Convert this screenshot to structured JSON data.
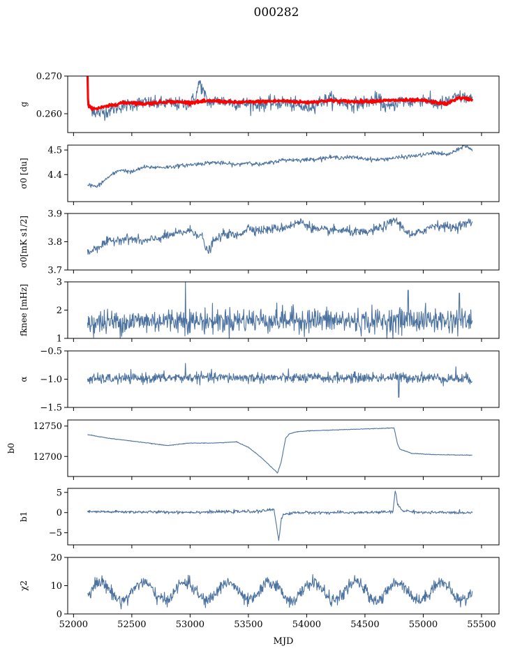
{
  "figure": {
    "title": "000282",
    "xlabel": "MJD"
  },
  "colors": {
    "series": "#4c72a0",
    "fit": "#ff0000",
    "axis": "#000000",
    "background": "#ffffff"
  },
  "chart_data": {
    "type": "line",
    "xlim": [
      51950,
      55650
    ],
    "xticks": [
      52000,
      52500,
      53000,
      53500,
      54000,
      54500,
      55000,
      55500
    ],
    "xtick_labels": [
      "52000",
      "52500",
      "53000",
      "53500",
      "54000",
      "54500",
      "55000",
      "55500"
    ],
    "xstart": 52120,
    "xend": 55420,
    "panels": [
      {
        "key": "g",
        "ylabel": "g",
        "ylim": [
          0.255,
          0.27
        ],
        "yticks": [
          0.26,
          0.27
        ],
        "ytick_labels": [
          "0.260",
          "0.270"
        ],
        "series": [
          {
            "color": "#4c72a0",
            "knots_x": [
              52120,
              52200,
              52300,
              52400,
              52500,
              52600,
              52700,
              52800,
              52900,
              53000,
              53050,
              53080,
              53150,
              53250,
              53400,
              53600,
              53800,
              54000,
              54100,
              54200,
              54300,
              54400,
              54500,
              54600,
              54700,
              54800,
              54900,
              55000,
              55100,
              55200,
              55300,
              55420
            ],
            "knots_y": [
              0.2625,
              0.26,
              0.2608,
              0.262,
              0.2625,
              0.263,
              0.2627,
              0.2628,
              0.2625,
              0.2628,
              0.2645,
              0.2685,
              0.263,
              0.2635,
              0.2628,
              0.2625,
              0.263,
              0.2615,
              0.263,
              0.264,
              0.263,
              0.2625,
              0.263,
              0.264,
              0.2615,
              0.2635,
              0.263,
              0.264,
              0.2625,
              0.263,
              0.2645,
              0.264
            ],
            "noise": 0.0009
          },
          {
            "color": "#ff0000",
            "knots_x": [
              52120,
              52125,
              52150,
              52200,
              52300,
              52400,
              52500,
              52600,
              52800,
              53000,
              53200,
              53400,
              53600,
              53800,
              54000,
              54200,
              54400,
              54600,
              54800,
              55000,
              55200,
              55300,
              55420
            ],
            "knots_y": [
              0.27,
              0.2622,
              0.2615,
              0.2614,
              0.262,
              0.2628,
              0.263,
              0.2626,
              0.2632,
              0.263,
              0.2634,
              0.263,
              0.2632,
              0.2634,
              0.263,
              0.2635,
              0.2632,
              0.2634,
              0.2636,
              0.2635,
              0.2626,
              0.2642,
              0.2638
            ],
            "noise": 0.0002
          }
        ]
      },
      {
        "key": "sigma0_du",
        "ylabel": "σ0 [du]",
        "ylim": [
          4.29,
          4.52
        ],
        "yticks": [
          4.4,
          4.5
        ],
        "ytick_labels": [
          "4.4",
          "4.5"
        ],
        "series": [
          {
            "color": "#4c72a0",
            "knots_x": [
              52120,
              52200,
              52300,
              52400,
              52500,
              52600,
              52700,
              52800,
              53000,
              53200,
              53400,
              53500,
              53600,
              53800,
              54000,
              54200,
              54400,
              54600,
              54800,
              55000,
              55100,
              55200,
              55300,
              55350,
              55420
            ],
            "knots_y": [
              4.36,
              4.35,
              4.39,
              4.42,
              4.41,
              4.43,
              4.43,
              4.43,
              4.44,
              4.45,
              4.44,
              4.45,
              4.44,
              4.46,
              4.46,
              4.47,
              4.47,
              4.46,
              4.47,
              4.48,
              4.49,
              4.48,
              4.5,
              4.52,
              4.5
            ],
            "noise": 0.004
          }
        ]
      },
      {
        "key": "sigma0_mk",
        "ylabel": "σ0[mK s1/2]",
        "ylim": [
          3.7,
          3.9
        ],
        "yticks": [
          3.7,
          3.8,
          3.9
        ],
        "ytick_labels": [
          "3.7",
          "3.8",
          "3.9"
        ],
        "series": [
          {
            "color": "#4c72a0",
            "knots_x": [
              52120,
              52200,
              52300,
              52400,
              52500,
              52600,
              52800,
              53000,
              53100,
              53150,
              53200,
              53300,
              53400,
              53500,
              53600,
              53800,
              53950,
              54100,
              54300,
              54500,
              54700,
              54750,
              54900,
              55100,
              55250,
              55420
            ],
            "knots_y": [
              3.76,
              3.78,
              3.8,
              3.81,
              3.81,
              3.8,
              3.82,
              3.84,
              3.82,
              3.76,
              3.8,
              3.83,
              3.82,
              3.85,
              3.84,
              3.85,
              3.87,
              3.84,
              3.84,
              3.83,
              3.86,
              3.88,
              3.82,
              3.86,
              3.85,
              3.87
            ],
            "noise": 0.008
          }
        ]
      },
      {
        "key": "fknee",
        "ylabel": "fknee [mHz]",
        "ylim": [
          1,
          3
        ],
        "yticks": [
          1,
          2,
          3
        ],
        "ytick_labels": [
          "1",
          "2",
          "3"
        ],
        "series": [
          {
            "color": "#4c72a0",
            "knots_x": [
              52120,
              52500,
              52950,
              53000,
              53500,
              54000,
              54500,
              55000,
              55420
            ],
            "knots_y": [
              1.55,
              1.6,
              1.65,
              1.6,
              1.65,
              1.65,
              1.6,
              1.65,
              1.6
            ],
            "noise": 0.22,
            "spikes": [
              [
                52960,
                3.0
              ],
              [
                54870,
                2.7
              ],
              [
                55310,
                2.6
              ]
            ]
          }
        ]
      },
      {
        "key": "alpha",
        "ylabel": "α",
        "ylim": [
          -1.5,
          -0.5
        ],
        "yticks": [
          -1.5,
          -1.0,
          -0.5
        ],
        "ytick_labels": [
          "−1.5",
          "−1.0",
          "−0.5"
        ],
        "series": [
          {
            "color": "#4c72a0",
            "knots_x": [
              52120,
              53000,
              54000,
              55000,
              55420
            ],
            "knots_y": [
              -1.0,
              -0.97,
              -0.98,
              -0.97,
              -1.0
            ],
            "noise": 0.045,
            "spikes": [
              [
                52960,
                -0.72
              ],
              [
                54790,
                -1.32
              ],
              [
                55280,
                -0.78
              ]
            ]
          }
        ]
      },
      {
        "key": "b0",
        "ylabel": "b0",
        "ylim": [
          12667,
          12760
        ],
        "yticks": [
          12700,
          12750
        ],
        "ytick_labels": [
          "12700",
          "12750"
        ],
        "series": [
          {
            "color": "#4c72a0",
            "knots_x": [
              52120,
              52300,
              52600,
              52800,
              52900,
              53000,
              53200,
              53400,
              53500,
              53600,
              53700,
              53750,
              53780,
              53820,
              53850,
              53900,
              54000,
              54300,
              54600,
              54750,
              54780,
              54800,
              54900,
              55100,
              55420
            ],
            "knots_y": [
              12736,
              12730,
              12723,
              12718,
              12720,
              12722,
              12722,
              12724,
              12715,
              12700,
              12682,
              12673,
              12690,
              12730,
              12737,
              12740,
              12742,
              12744,
              12746,
              12747,
              12720,
              12712,
              12705,
              12703,
              12702
            ],
            "noise": 0.25
          }
        ]
      },
      {
        "key": "b1",
        "ylabel": "b1",
        "ylim": [
          -8,
          6
        ],
        "yticks": [
          -5,
          0,
          5
        ],
        "ytick_labels": [
          "−5",
          "0",
          "5"
        ],
        "series": [
          {
            "color": "#4c72a0",
            "knots_x": [
              52120,
              53000,
              53600,
              53720,
              53740,
              53760,
              53780,
              53800,
              53900,
              54500,
              54740,
              54760,
              54780,
              54820,
              55000,
              55420
            ],
            "knots_y": [
              0.2,
              0.1,
              0.3,
              0.8,
              -3.0,
              -6.8,
              -2.0,
              -0.5,
              0.0,
              0.0,
              0.2,
              5.5,
              2.0,
              0.5,
              0.0,
              0.0
            ],
            "noise": 0.18
          }
        ]
      },
      {
        "key": "chi2",
        "ylabel": "χ2",
        "ylim": [
          0,
          20
        ],
        "yticks": [
          0,
          10,
          20
        ],
        "ytick_labels": [
          "0",
          "10",
          "20"
        ],
        "series": [
          {
            "color": "#4c72a0",
            "baseline": 8,
            "amplitude": 3.2,
            "period": 365,
            "noise": 1.1
          }
        ]
      }
    ]
  }
}
